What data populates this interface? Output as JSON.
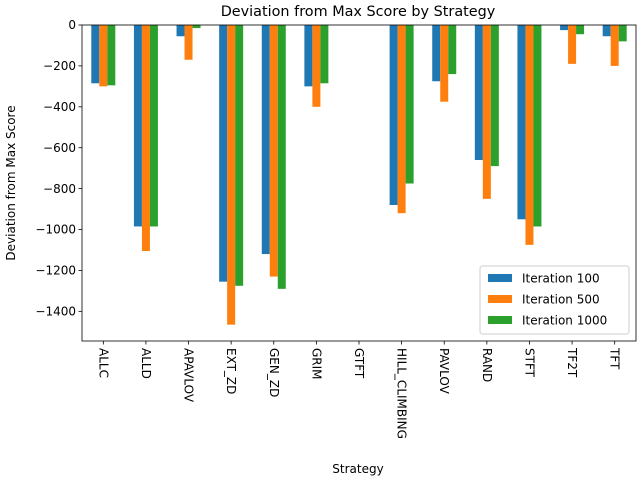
{
  "chart_data": {
    "type": "bar",
    "title": "Deviation from Max Score by Strategy",
    "xlabel": "Strategy",
    "ylabel": "Deviation from Max Score",
    "categories": [
      "ALLC",
      "ALLD",
      "APAVLOV",
      "EXT_ZD",
      "GEN_ZD",
      "GRIM",
      "GTFT",
      "HILL_CLIMBING",
      "PAVLOV",
      "RAND",
      "STFT",
      "TF2T",
      "TFT"
    ],
    "series": [
      {
        "name": "Iteration 100",
        "color": "#1f77b4",
        "values": [
          -285,
          -985,
          -55,
          -1255,
          -1120,
          -300,
          0,
          -880,
          -275,
          -660,
          -950,
          -25,
          -55
        ]
      },
      {
        "name": "Iteration 500",
        "color": "#ff7f0e",
        "values": [
          -300,
          -1105,
          -170,
          -1465,
          -1230,
          -400,
          0,
          -920,
          -375,
          -850,
          -1075,
          -190,
          -200
        ]
      },
      {
        "name": "Iteration 1000",
        "color": "#2ca02c",
        "values": [
          -295,
          -985,
          -15,
          -1275,
          -1290,
          -285,
          0,
          -775,
          -240,
          -690,
          -985,
          -45,
          -80
        ]
      }
    ],
    "ylim": [
      -1545,
      0
    ],
    "yticks": [
      0,
      -200,
      -400,
      -600,
      -800,
      -1000,
      -1200,
      -1400
    ],
    "ytick_labels": [
      "0",
      "−200",
      "−400",
      "−600",
      "−800",
      "−1000",
      "−1200",
      "−1400"
    ],
    "legend_position": "lower-right",
    "grid": false
  }
}
